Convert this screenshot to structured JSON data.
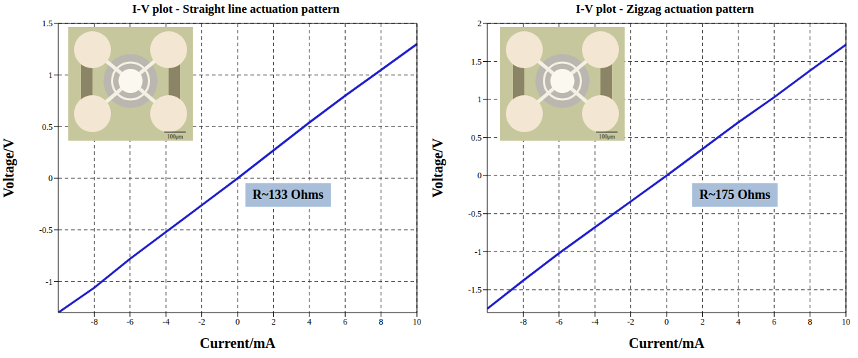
{
  "chart_data": [
    {
      "type": "line",
      "title": "I-V plot - Straight line actuation pattern",
      "x_label": "Current/mA",
      "y_label": "Voltage/V",
      "x": [
        -10,
        -8,
        -6,
        -4,
        -2,
        0,
        2,
        4,
        6,
        8,
        10
      ],
      "series": [
        {
          "color": "#1f1fcc",
          "values": [
            -1.3,
            -1.06,
            -0.78,
            -0.52,
            -0.26,
            0,
            0.27,
            0.54,
            0.8,
            1.05,
            1.3
          ]
        }
      ],
      "xlim": [
        -10,
        10
      ],
      "xticks": [
        -8,
        -6,
        -4,
        -2,
        0,
        2,
        4,
        6,
        8,
        10
      ],
      "ylim": [
        -1.3,
        1.5
      ],
      "yticks": [
        -1,
        -0.5,
        0,
        0.5,
        1,
        1.5
      ],
      "grid": true,
      "annotation": "R~133 Ohms",
      "inset_label": "100μm"
    },
    {
      "type": "line",
      "title": "I-V plot - Zigzag actuation pattern",
      "x_label": "Current/mA",
      "y_label": "Voltage/V",
      "x": [
        -10,
        -8,
        -6,
        -4,
        -2,
        0,
        2,
        4,
        6,
        8,
        10
      ],
      "series": [
        {
          "color": "#1f1fcc",
          "values": [
            -1.75,
            -1.38,
            -1.02,
            -0.68,
            -0.34,
            0,
            0.35,
            0.7,
            1.03,
            1.38,
            1.72
          ]
        }
      ],
      "xlim": [
        -10,
        10
      ],
      "xticks": [
        -8,
        -6,
        -4,
        -2,
        0,
        2,
        4,
        6,
        8,
        10
      ],
      "ylim": [
        -1.8,
        2
      ],
      "yticks": [
        -1.5,
        -1,
        -0.5,
        0,
        0.5,
        1,
        1.5,
        2
      ],
      "grid": true,
      "annotation": "R~175 Ohms",
      "inset_label": "100μm"
    }
  ]
}
